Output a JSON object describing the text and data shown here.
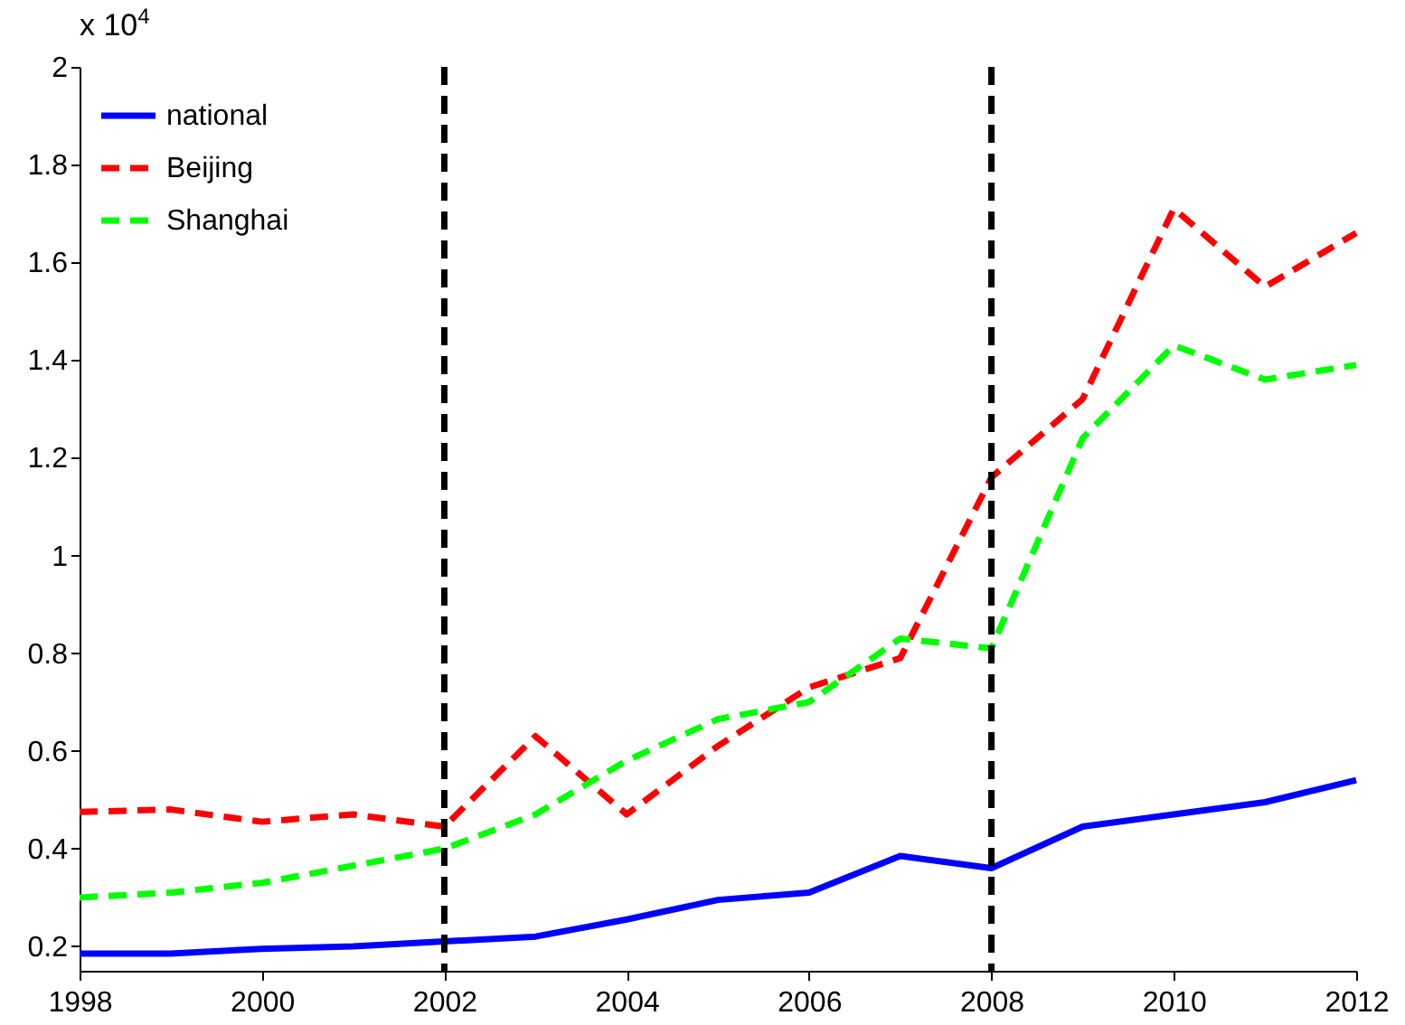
{
  "chart_data": {
    "type": "line",
    "x": [
      1998,
      1999,
      2000,
      2001,
      2002,
      2003,
      2004,
      2005,
      2006,
      2007,
      2008,
      2009,
      2010,
      2011,
      2012
    ],
    "series": [
      {
        "name": "national",
        "color": "#0000ff",
        "line_style": "solid",
        "values": [
          0.185,
          0.185,
          0.195,
          0.2,
          0.21,
          0.22,
          0.255,
          0.295,
          0.31,
          0.385,
          0.36,
          0.445,
          0.47,
          0.495,
          0.54
        ]
      },
      {
        "name": "Beijing",
        "color": "#ff0000",
        "line_style": "dashed",
        "values": [
          0.475,
          0.48,
          0.455,
          0.47,
          0.445,
          0.63,
          0.47,
          0.61,
          0.73,
          0.79,
          1.16,
          1.32,
          1.71,
          1.55,
          1.66
        ]
      },
      {
        "name": "Shanghai",
        "color": "#00ff00",
        "line_style": "dashed",
        "values": [
          0.3,
          0.31,
          0.33,
          0.365,
          0.4,
          0.47,
          0.58,
          0.665,
          0.7,
          0.83,
          0.81,
          1.24,
          1.43,
          1.36,
          1.39
        ]
      }
    ],
    "xlim": [
      1998,
      2012
    ],
    "xticks": [
      1998,
      2000,
      2002,
      2004,
      2006,
      2008,
      2010,
      2012
    ],
    "ylim": [
      0.15,
      2
    ],
    "yticks": [
      0.2,
      0.4,
      0.6,
      0.8,
      1,
      1.2,
      1.4,
      1.6,
      1.8,
      2
    ],
    "ref_lines": [
      {
        "axis": "x",
        "value": 2002,
        "color": "#000000",
        "line_style": "dashed"
      },
      {
        "axis": "x",
        "value": 2008,
        "color": "#000000",
        "line_style": "dashed"
      }
    ],
    "annotations": [
      "x 10$^{4}$"
    ],
    "grid": false,
    "legend": "top left",
    "marker": "none"
  }
}
